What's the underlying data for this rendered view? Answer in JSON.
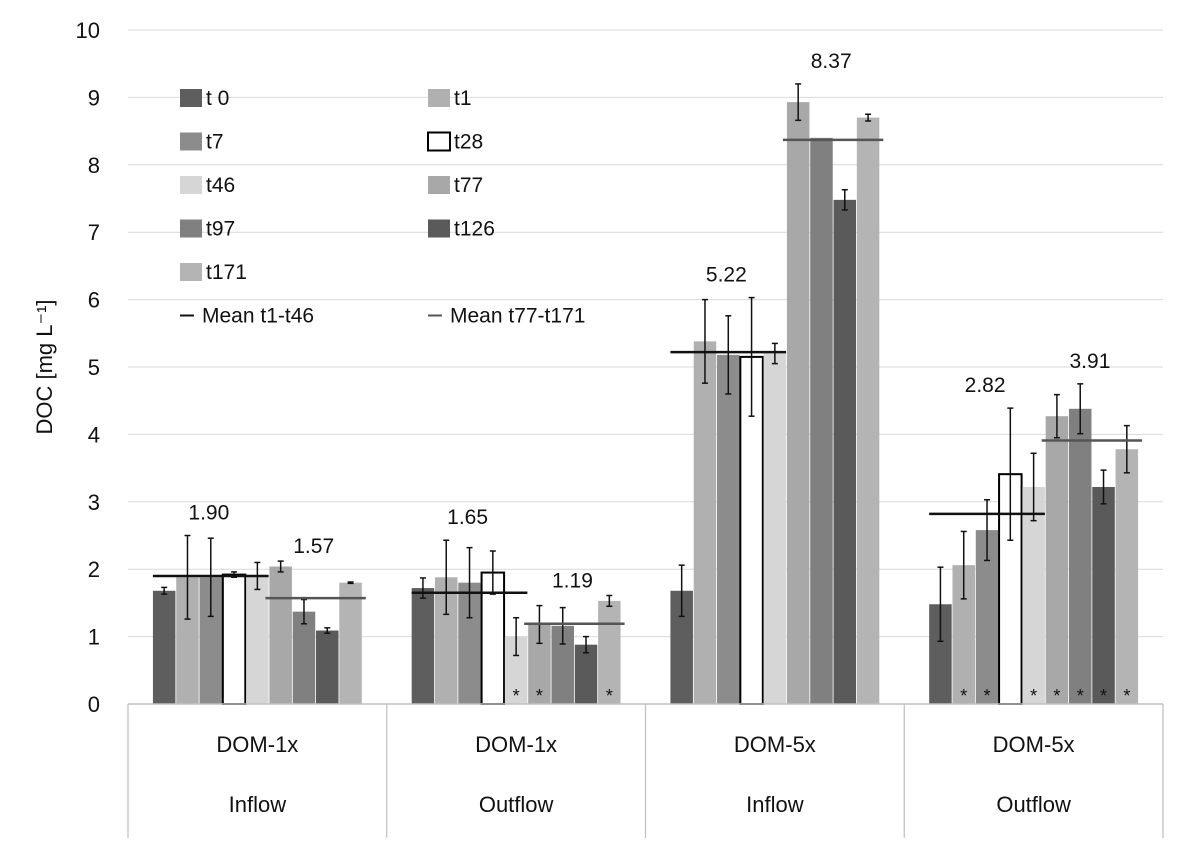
{
  "chart_data": {
    "type": "bar",
    "title": "",
    "xlabel": "",
    "ylabel": "DOC [mg L⁻¹]",
    "ylim": [
      0,
      10
    ],
    "yticks": [
      "0",
      "1",
      "2",
      "3",
      "4",
      "5",
      "6",
      "7",
      "8",
      "9",
      "10"
    ],
    "grid": true,
    "legend_position": "top-left",
    "categories": [
      {
        "line1": "DOM-1x",
        "line2": "Inflow"
      },
      {
        "line1": "DOM-1x",
        "line2": "Outflow"
      },
      {
        "line1": "DOM-5x",
        "line2": "Inflow"
      },
      {
        "line1": "DOM-5x",
        "line2": "Outflow"
      }
    ],
    "series": [
      {
        "name": "t 0",
        "color": "#5e5e5e",
        "values": [
          1.68,
          1.72,
          1.68,
          1.48
        ],
        "errors": [
          0.05,
          0.15,
          0.38,
          0.55
        ],
        "asterisk": [
          false,
          false,
          false,
          false
        ]
      },
      {
        "name": "t1",
        "color": "#b0b0b0",
        "values": [
          1.88,
          1.88,
          5.38,
          2.06
        ],
        "errors": [
          0.62,
          0.55,
          0.62,
          0.5
        ],
        "asterisk": [
          false,
          false,
          false,
          true
        ]
      },
      {
        "name": "t7",
        "color": "#8c8c8c",
        "values": [
          1.88,
          1.8,
          5.18,
          2.58
        ],
        "errors": [
          0.58,
          0.52,
          0.58,
          0.45
        ],
        "asterisk": [
          false,
          false,
          false,
          true
        ]
      },
      {
        "name": "t28",
        "color": "#ffffff",
        "values": [
          1.92,
          1.95,
          5.15,
          3.41
        ],
        "errors": [
          0.04,
          0.32,
          0.88,
          0.98
        ],
        "asterisk": [
          false,
          false,
          false,
          false
        ]
      },
      {
        "name": "t46",
        "color": "#d6d6d6",
        "values": [
          1.9,
          1.0,
          5.2,
          3.22
        ],
        "errors": [
          0.2,
          0.28,
          0.15,
          0.5
        ],
        "asterisk": [
          false,
          true,
          false,
          true
        ]
      },
      {
        "name": "t77",
        "color": "#a8a8a8",
        "values": [
          2.04,
          1.18,
          8.93,
          4.27
        ],
        "errors": [
          0.08,
          0.28,
          0.27,
          0.32
        ],
        "asterisk": [
          false,
          true,
          false,
          true
        ]
      },
      {
        "name": "t97",
        "color": "#808080",
        "values": [
          1.37,
          1.16,
          8.4,
          4.38
        ],
        "errors": [
          0.18,
          0.27,
          0.0,
          0.37
        ],
        "asterisk": [
          false,
          false,
          false,
          true
        ]
      },
      {
        "name": "t126",
        "color": "#5a5a5a",
        "values": [
          1.09,
          0.88,
          7.48,
          3.22
        ],
        "errors": [
          0.04,
          0.12,
          0.15,
          0.25
        ],
        "asterisk": [
          false,
          false,
          false,
          true
        ]
      },
      {
        "name": "t171",
        "color": "#b4b4b4",
        "values": [
          1.8,
          1.53,
          8.7,
          3.78
        ],
        "errors": [
          0.01,
          0.08,
          0.05,
          0.35
        ],
        "asterisk": [
          false,
          true,
          false,
          true
        ]
      }
    ],
    "means": [
      {
        "name": "Mean t1-t46",
        "color": "#111111",
        "values": [
          1.9,
          1.65,
          5.22,
          2.82
        ],
        "labels": [
          "1.90",
          "1.65",
          "5.22",
          "2.82"
        ]
      },
      {
        "name": "Mean t77-t171",
        "color": "#555555",
        "values": [
          1.57,
          1.19,
          8.37,
          3.91
        ],
        "labels": [
          "1.57",
          "1.19",
          "8.37",
          "3.91"
        ]
      }
    ],
    "asterisk_symbol": "*"
  }
}
